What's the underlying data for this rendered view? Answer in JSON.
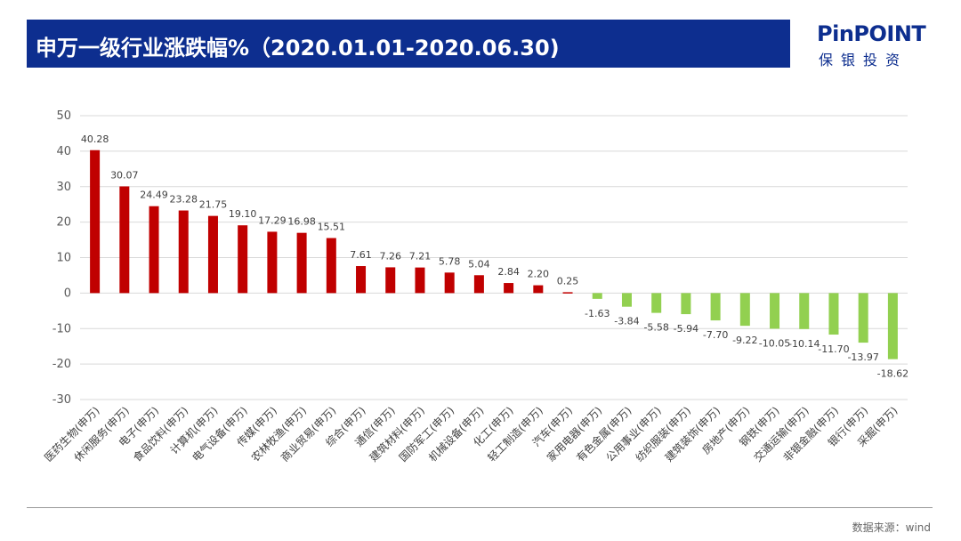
{
  "header": {
    "title": "申万一级行业涨跌幅%（2020.01.01-2020.06.30)"
  },
  "logo": {
    "brand": "PinPOINT",
    "subtitle": "保银投资"
  },
  "footer": {
    "source": "数据来源：wind"
  },
  "colors": {
    "title_bar": "#0d2e8f",
    "positive": "#c00000",
    "negative": "#92d050",
    "grid": "#d9d9d9"
  },
  "chart_data": {
    "type": "bar",
    "title": "",
    "xlabel": "",
    "ylabel": "",
    "ylim": [
      -30,
      50
    ],
    "yticks": [
      50,
      40,
      30,
      20,
      10,
      0,
      -10,
      -20,
      -30
    ],
    "grid": true,
    "legend": "none",
    "categories": [
      "医药生物(申万)",
      "休闲服务(申万)",
      "电子(申万)",
      "食品饮料(申万)",
      "计算机(申万)",
      "电气设备(申万)",
      "传媒(申万)",
      "农林牧渔(申万)",
      "商业贸易(申万)",
      "综合(申万)",
      "通信(申万)",
      "建筑材料(申万)",
      "国防军工(申万)",
      "机械设备(申万)",
      "化工(申万)",
      "轻工制造(申万)",
      "汽车(申万)",
      "家用电器(申万)",
      "有色金属(申万)",
      "公用事业(申万)",
      "纺织服装(申万)",
      "建筑装饰(申万)",
      "房地产(申万)",
      "钢铁(申万)",
      "交通运输(申万)",
      "非银金融(申万)",
      "银行(申万)",
      "采掘(申万)"
    ],
    "values": [
      40.28,
      30.07,
      24.49,
      23.28,
      21.75,
      19.1,
      17.29,
      16.98,
      15.51,
      7.61,
      7.26,
      7.21,
      5.78,
      5.04,
      2.84,
      2.2,
      0.25,
      -1.63,
      -3.84,
      -5.58,
      -5.94,
      -7.7,
      -9.22,
      -10.05,
      -10.14,
      -11.7,
      -13.97,
      -18.62
    ],
    "value_labels": [
      "40.28",
      "30.07",
      "24.49",
      "23.28",
      "21.75",
      "19.10",
      "17.29",
      "16.98",
      "15.51",
      "7.61",
      "7.26",
      "7.21",
      "5.78",
      "5.04",
      "2.84",
      "2.20",
      "0.25",
      "-1.63",
      "-3.84",
      "-5.58",
      "-5.94",
      "-7.70",
      "-9.22",
      "-10.05",
      "-10.14",
      "-11.70",
      "-13.97",
      "-18.62"
    ]
  }
}
